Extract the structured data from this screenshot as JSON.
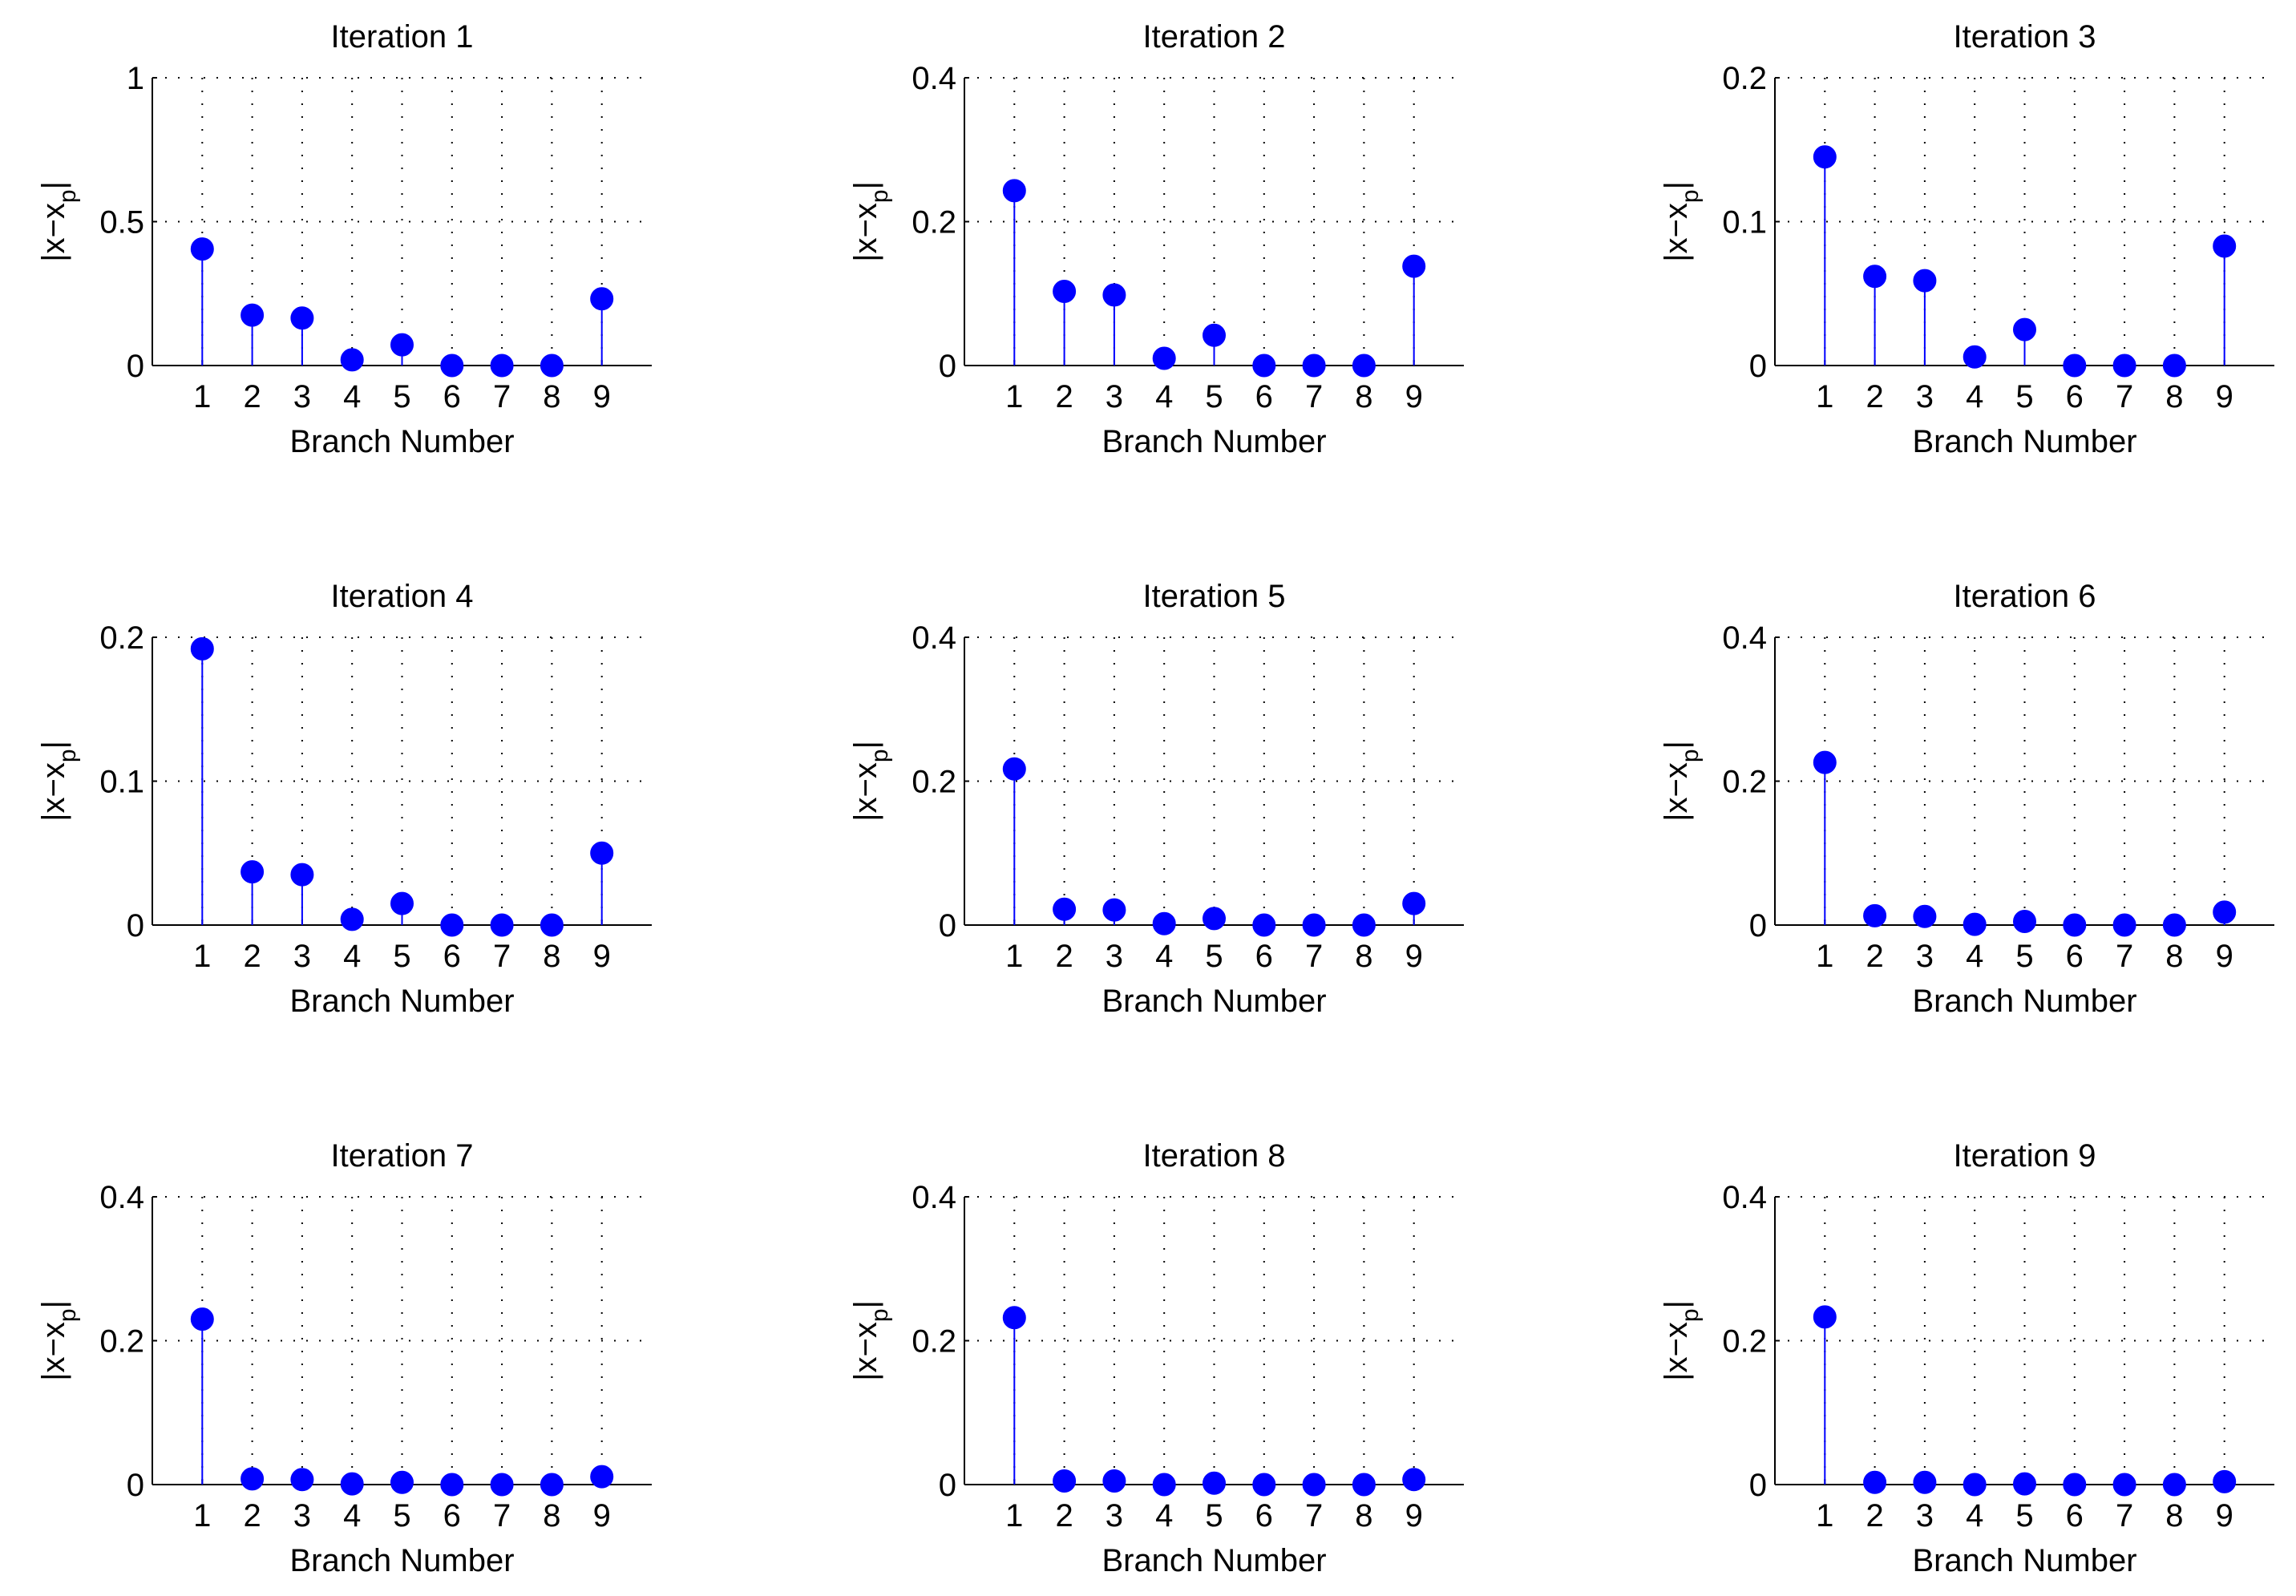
{
  "colors": {
    "stem": "#0000ff",
    "marker": "#0000ff",
    "axis": "#000000",
    "grid": "#000000"
  },
  "chart_data": [
    {
      "type": "stem",
      "title": "Iteration 1",
      "xlabel": "Branch Number",
      "ylabel_main": "|x−x",
      "ylabel_sub": "p",
      "ylabel_end": "|",
      "x": [
        1,
        2,
        3,
        4,
        5,
        6,
        7,
        8,
        9
      ],
      "values": [
        0.405,
        0.175,
        0.165,
        0.02,
        0.072,
        0.0,
        0.0,
        0.0,
        0.232
      ],
      "ylim": [
        0,
        1
      ],
      "yticks": [
        0,
        0.5,
        1
      ],
      "ytick_labels": [
        "0",
        "0.5",
        "1"
      ],
      "xticks": [
        "1",
        "2",
        "3",
        "4",
        "5",
        "6",
        "7",
        "8",
        "9"
      ],
      "grid": true
    },
    {
      "type": "stem",
      "title": "Iteration 2",
      "xlabel": "Branch Number",
      "ylabel_main": "|x−x",
      "ylabel_sub": "p",
      "ylabel_end": "|",
      "x": [
        1,
        2,
        3,
        4,
        5,
        6,
        7,
        8,
        9
      ],
      "values": [
        0.243,
        0.103,
        0.098,
        0.01,
        0.042,
        0.0,
        0.0,
        0.0,
        0.138
      ],
      "ylim": [
        0,
        0.4
      ],
      "yticks": [
        0,
        0.2,
        0.4
      ],
      "ytick_labels": [
        "0",
        "0.2",
        "0.4"
      ],
      "xticks": [
        "1",
        "2",
        "3",
        "4",
        "5",
        "6",
        "7",
        "8",
        "9"
      ],
      "grid": true
    },
    {
      "type": "stem",
      "title": "Iteration 3",
      "xlabel": "Branch Number",
      "ylabel_main": "|x−x",
      "ylabel_sub": "p",
      "ylabel_end": "|",
      "x": [
        1,
        2,
        3,
        4,
        5,
        6,
        7,
        8,
        9
      ],
      "values": [
        0.145,
        0.062,
        0.059,
        0.006,
        0.025,
        0.0,
        0.0,
        0.0,
        0.083
      ],
      "ylim": [
        0,
        0.2
      ],
      "yticks": [
        0,
        0.1,
        0.2
      ],
      "ytick_labels": [
        "0",
        "0.1",
        "0.2"
      ],
      "xticks": [
        "1",
        "2",
        "3",
        "4",
        "5",
        "6",
        "7",
        "8",
        "9"
      ],
      "grid": true
    },
    {
      "type": "stem",
      "title": "Iteration 4",
      "xlabel": "Branch Number",
      "ylabel_main": "|x−x",
      "ylabel_sub": "p",
      "ylabel_end": "|",
      "x": [
        1,
        2,
        3,
        4,
        5,
        6,
        7,
        8,
        9
      ],
      "values": [
        0.192,
        0.037,
        0.035,
        0.004,
        0.015,
        0.0,
        0.0,
        0.0,
        0.05
      ],
      "ylim": [
        0,
        0.2
      ],
      "yticks": [
        0,
        0.1,
        0.2
      ],
      "ytick_labels": [
        "0",
        "0.1",
        "0.2"
      ],
      "xticks": [
        "1",
        "2",
        "3",
        "4",
        "5",
        "6",
        "7",
        "8",
        "9"
      ],
      "grid": true
    },
    {
      "type": "stem",
      "title": "Iteration 5",
      "xlabel": "Branch Number",
      "ylabel_main": "|x−x",
      "ylabel_sub": "p",
      "ylabel_end": "|",
      "x": [
        1,
        2,
        3,
        4,
        5,
        6,
        7,
        8,
        9
      ],
      "values": [
        0.217,
        0.022,
        0.021,
        0.002,
        0.009,
        0.0,
        0.0,
        0.0,
        0.03
      ],
      "ylim": [
        0,
        0.4
      ],
      "yticks": [
        0,
        0.2,
        0.4
      ],
      "ytick_labels": [
        "0",
        "0.2",
        "0.4"
      ],
      "xticks": [
        "1",
        "2",
        "3",
        "4",
        "5",
        "6",
        "7",
        "8",
        "9"
      ],
      "grid": true
    },
    {
      "type": "stem",
      "title": "Iteration 6",
      "xlabel": "Branch Number",
      "ylabel_main": "|x−x",
      "ylabel_sub": "p",
      "ylabel_end": "|",
      "x": [
        1,
        2,
        3,
        4,
        5,
        6,
        7,
        8,
        9
      ],
      "values": [
        0.226,
        0.013,
        0.012,
        0.001,
        0.005,
        0.0,
        0.0,
        0.0,
        0.018
      ],
      "ylim": [
        0,
        0.4
      ],
      "yticks": [
        0,
        0.2,
        0.4
      ],
      "ytick_labels": [
        "0",
        "0.2",
        "0.4"
      ],
      "xticks": [
        "1",
        "2",
        "3",
        "4",
        "5",
        "6",
        "7",
        "8",
        "9"
      ],
      "grid": true
    },
    {
      "type": "stem",
      "title": "Iteration 7",
      "xlabel": "Branch Number",
      "ylabel_main": "|x−x",
      "ylabel_sub": "p",
      "ylabel_end": "|",
      "x": [
        1,
        2,
        3,
        4,
        5,
        6,
        7,
        8,
        9
      ],
      "values": [
        0.23,
        0.008,
        0.007,
        0.001,
        0.003,
        0.0,
        0.0,
        0.0,
        0.011
      ],
      "ylim": [
        0,
        0.4
      ],
      "yticks": [
        0,
        0.2,
        0.4
      ],
      "ytick_labels": [
        "0",
        "0.2",
        "0.4"
      ],
      "xticks": [
        "1",
        "2",
        "3",
        "4",
        "5",
        "6",
        "7",
        "8",
        "9"
      ],
      "grid": true
    },
    {
      "type": "stem",
      "title": "Iteration 8",
      "xlabel": "Branch Number",
      "ylabel_main": "|x−x",
      "ylabel_sub": "p",
      "ylabel_end": "|",
      "x": [
        1,
        2,
        3,
        4,
        5,
        6,
        7,
        8,
        9
      ],
      "values": [
        0.232,
        0.005,
        0.005,
        0.0,
        0.002,
        0.0,
        0.0,
        0.0,
        0.007
      ],
      "ylim": [
        0,
        0.4
      ],
      "yticks": [
        0,
        0.2,
        0.4
      ],
      "ytick_labels": [
        "0",
        "0.2",
        "0.4"
      ],
      "xticks": [
        "1",
        "2",
        "3",
        "4",
        "5",
        "6",
        "7",
        "8",
        "9"
      ],
      "grid": true
    },
    {
      "type": "stem",
      "title": "Iteration 9",
      "xlabel": "Branch Number",
      "ylabel_main": "|x−x",
      "ylabel_sub": "p",
      "ylabel_end": "|",
      "x": [
        1,
        2,
        3,
        4,
        5,
        6,
        7,
        8,
        9
      ],
      "values": [
        0.233,
        0.003,
        0.003,
        0.0,
        0.001,
        0.0,
        0.0,
        0.0,
        0.004
      ],
      "ylim": [
        0,
        0.4
      ],
      "yticks": [
        0,
        0.2,
        0.4
      ],
      "ytick_labels": [
        "0",
        "0.2",
        "0.4"
      ],
      "xticks": [
        "1",
        "2",
        "3",
        "4",
        "5",
        "6",
        "7",
        "8",
        "9"
      ],
      "grid": true
    }
  ]
}
